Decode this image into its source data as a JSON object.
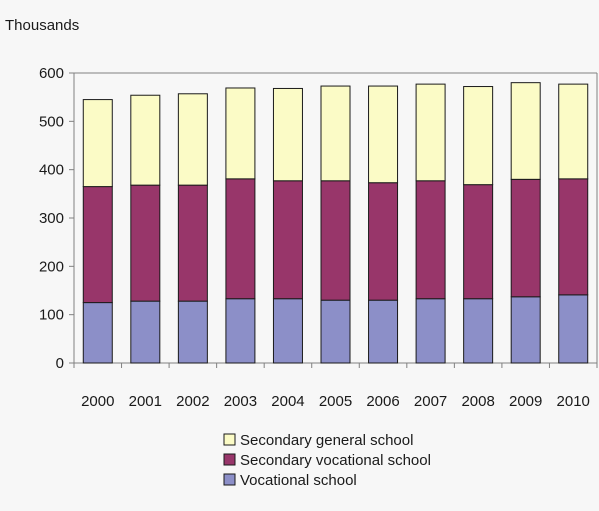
{
  "chart_data": {
    "type": "bar",
    "stacked": true,
    "unit_label": "Thousands",
    "categories": [
      "2000",
      "2001",
      "2002",
      "2003",
      "2004",
      "2005",
      "2006",
      "2007",
      "2008",
      "2009",
      "2010"
    ],
    "series": [
      {
        "name": "Vocational school",
        "color": "#8c8fc8",
        "values": [
          125,
          128,
          128,
          133,
          133,
          130,
          130,
          133,
          133,
          137,
          141
        ]
      },
      {
        "name": "Secondary vocational school",
        "color": "#98366a",
        "values": [
          240,
          240,
          240,
          248,
          244,
          247,
          243,
          244,
          236,
          243,
          240
        ]
      },
      {
        "name": "Secondary general school",
        "color": "#fbfbc6",
        "values": [
          180,
          186,
          189,
          188,
          191,
          196,
          200,
          200,
          203,
          200,
          196
        ]
      }
    ],
    "legend_order": [
      "Secondary general school",
      "Secondary vocational school",
      "Vocational school"
    ],
    "ylim": [
      0,
      600
    ],
    "yticks": [
      0,
      100,
      200,
      300,
      400,
      500,
      600
    ],
    "grid": false,
    "legend_position": "bottom-center"
  }
}
